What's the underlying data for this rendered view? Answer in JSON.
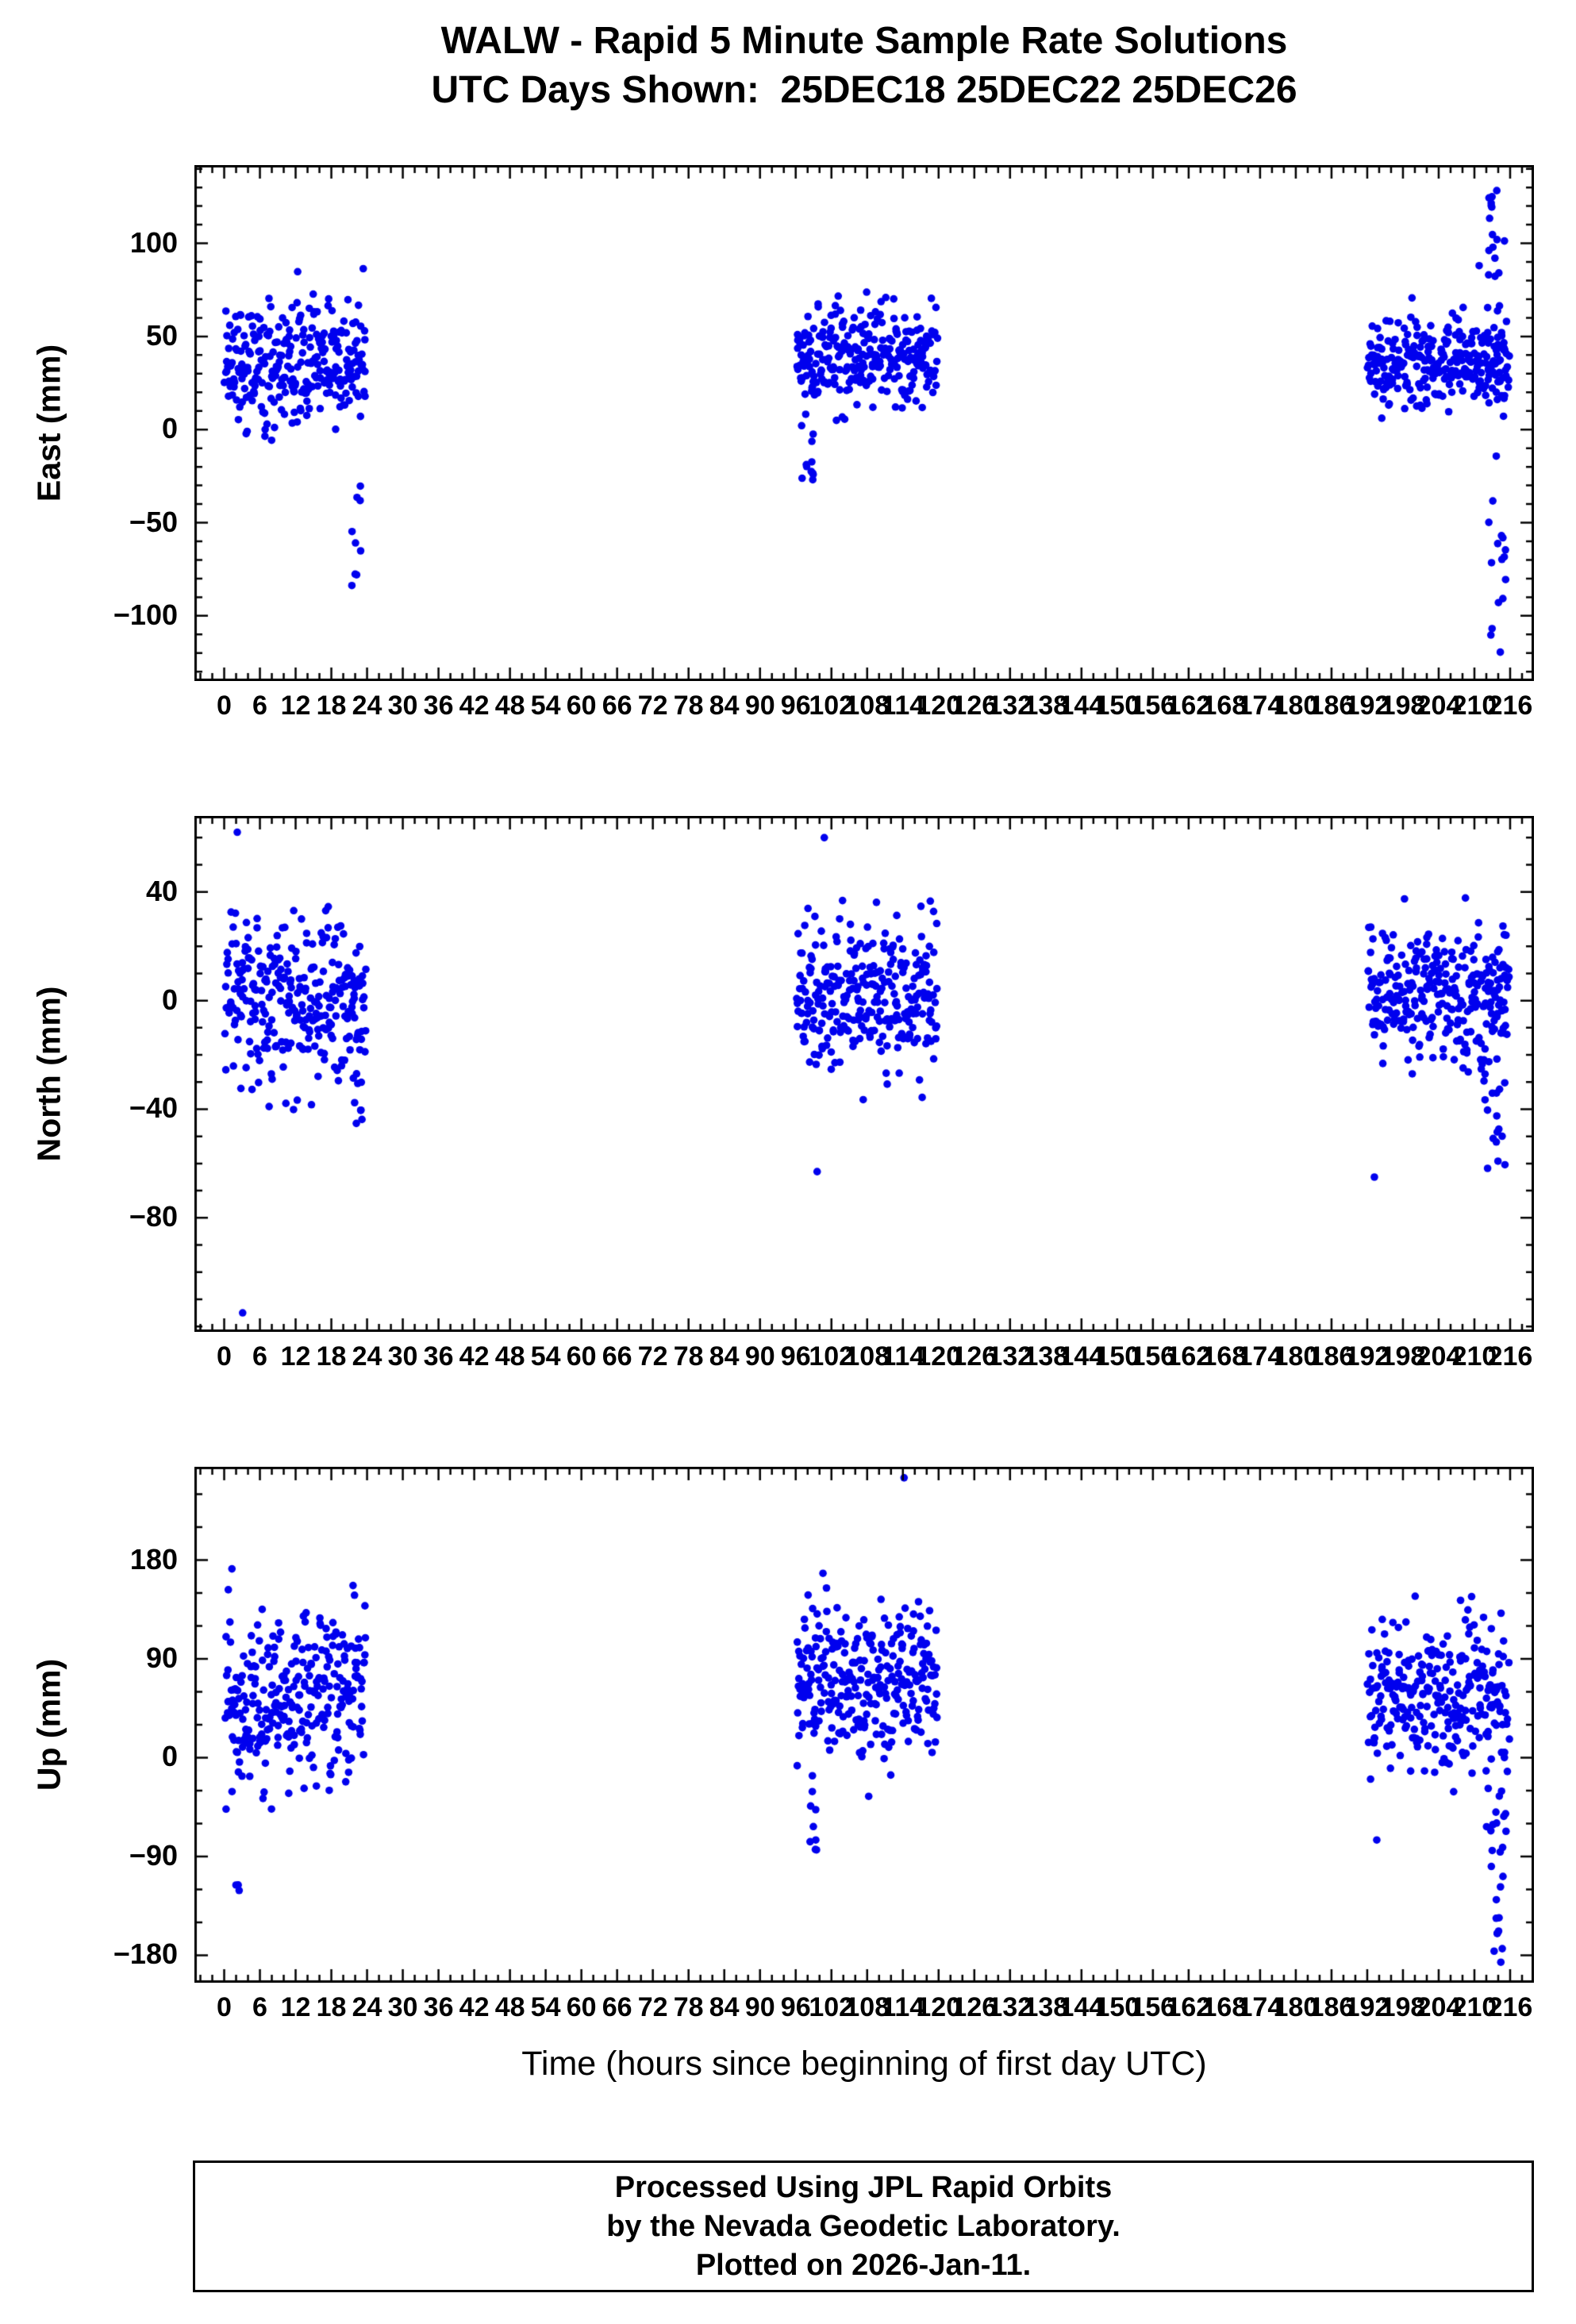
{
  "title": {
    "line1": "WALW - Rapid 5 Minute Sample Rate Solutions",
    "line2": "UTC Days Shown:  25DEC18 25DEC22 25DEC26"
  },
  "x_axis_title": "Time (hours since beginning of first day UTC)",
  "footer": {
    "lines": [
      "Processed Using JPL Rapid Orbits",
      "by the Nevada Geodetic Laboratory.",
      "Plotted on 2026-Jan-11."
    ]
  },
  "colors": {
    "points": "#0000ee",
    "axis": "#000000",
    "background": "#ffffff",
    "text": "#000000"
  },
  "chart_data": [
    {
      "type": "scatter",
      "name": "east",
      "ylabel": "East (mm)",
      "days": [
        "25DEC18",
        "25DEC22",
        "25DEC26"
      ],
      "xlim": [
        -5,
        220
      ],
      "ylim": [
        -135,
        142
      ],
      "xticks": [
        0,
        6,
        12,
        18,
        24,
        30,
        36,
        42,
        48,
        54,
        60,
        66,
        72,
        78,
        84,
        90,
        96,
        102,
        108,
        114,
        120,
        126,
        132,
        138,
        144,
        150,
        156,
        162,
        168,
        174,
        180,
        186,
        192,
        198,
        204,
        210,
        216
      ],
      "xminor": 2,
      "yticks": [
        {
          "v": 100,
          "label": "100"
        },
        {
          "v": 50,
          "label": "50"
        },
        {
          "v": 0,
          "label": "0"
        },
        {
          "v": -50,
          "label": "−50"
        },
        {
          "v": -100,
          "label": "−100"
        }
      ],
      "yminor": 10,
      "clusters": [
        {
          "x0": 0.1,
          "x1": 23.8,
          "n": 285,
          "mean": 36,
          "sd": 17,
          "ymin": -12,
          "ymax": 95
        },
        {
          "x0": 96.1,
          "x1": 119.8,
          "n": 285,
          "mean": 39,
          "sd": 14,
          "ymin": -15,
          "ymax": 90
        },
        {
          "x0": 192.1,
          "x1": 215.8,
          "n": 285,
          "mean": 36,
          "sd": 12,
          "ymin": 6,
          "ymax": 80
        }
      ],
      "streaks": [
        {
          "x0": 21.4,
          "x1": 23.2,
          "n": 9,
          "y0": -96,
          "y1": -28
        },
        {
          "x0": 96.8,
          "x1": 99.2,
          "n": 12,
          "y0": -34,
          "y1": 12
        },
        {
          "x0": 212.2,
          "x1": 215.4,
          "n": 42,
          "y0": -128,
          "y1": 137
        }
      ],
      "outliers": [
        [
          210.8,
          88
        ]
      ]
    },
    {
      "type": "scatter",
      "name": "north",
      "ylabel": "North (mm)",
      "days": [
        "25DEC18",
        "25DEC22",
        "25DEC26"
      ],
      "xlim": [
        -5,
        220
      ],
      "ylim": [
        -122,
        68
      ],
      "xticks": [
        0,
        6,
        12,
        18,
        24,
        30,
        36,
        42,
        48,
        54,
        60,
        66,
        72,
        78,
        84,
        90,
        96,
        102,
        108,
        114,
        120,
        126,
        132,
        138,
        144,
        150,
        156,
        162,
        168,
        174,
        180,
        186,
        192,
        198,
        204,
        210,
        216
      ],
      "xminor": 2,
      "yticks": [
        {
          "v": 40,
          "label": "40"
        },
        {
          "v": 0,
          "label": "0"
        },
        {
          "v": -40,
          "label": "−40"
        },
        {
          "v": -80,
          "label": "−80"
        }
      ],
      "yminor": 10,
      "clusters": [
        {
          "x0": 0.1,
          "x1": 23.8,
          "n": 285,
          "mean": 0,
          "sd": 15,
          "ymin": -46,
          "ymax": 44
        },
        {
          "x0": 96.1,
          "x1": 119.8,
          "n": 285,
          "mean": 2,
          "sd": 14,
          "ymin": -37,
          "ymax": 40
        },
        {
          "x0": 192.1,
          "x1": 215.8,
          "n": 285,
          "mean": 2,
          "sd": 13,
          "ymin": -34,
          "ymax": 46
        }
      ],
      "streaks": [
        {
          "x0": 21.5,
          "x1": 23.2,
          "n": 7,
          "y0": -52,
          "y1": -22
        },
        {
          "x0": 211.5,
          "x1": 215.5,
          "n": 28,
          "y0": -62,
          "y1": 6
        }
      ],
      "outliers": [
        [
          2.2,
          62
        ],
        [
          3.1,
          -115
        ],
        [
          100.8,
          60
        ],
        [
          99.6,
          -63
        ],
        [
          193.2,
          -65
        ]
      ]
    },
    {
      "type": "scatter",
      "name": "up",
      "ylabel": "Up (mm)",
      "days": [
        "25DEC18",
        "25DEC22",
        "25DEC26"
      ],
      "xlim": [
        -5,
        220
      ],
      "ylim": [
        -205,
        265
      ],
      "xticks": [
        0,
        6,
        12,
        18,
        24,
        30,
        36,
        42,
        48,
        54,
        60,
        66,
        72,
        78,
        84,
        90,
        96,
        102,
        108,
        114,
        120,
        126,
        132,
        138,
        144,
        150,
        156,
        162,
        168,
        174,
        180,
        186,
        192,
        198,
        204,
        210,
        216
      ],
      "xminor": 2,
      "yticks": [
        {
          "v": 180,
          "label": "180"
        },
        {
          "v": 90,
          "label": "90"
        },
        {
          "v": 0,
          "label": "0"
        },
        {
          "v": -90,
          "label": "−90"
        },
        {
          "v": -180,
          "label": "−180"
        }
      ],
      "yminor": 30,
      "clusters": [
        {
          "x0": 0.1,
          "x1": 23.8,
          "n": 285,
          "mean": 58,
          "sd": 42,
          "ymin": -62,
          "ymax": 178
        },
        {
          "x0": 96.1,
          "x1": 119.8,
          "n": 285,
          "mean": 66,
          "sd": 34,
          "ymin": -55,
          "ymax": 168
        },
        {
          "x0": 192.1,
          "x1": 215.8,
          "n": 285,
          "mean": 52,
          "sd": 36,
          "ymin": -68,
          "ymax": 172
        }
      ],
      "streaks": [
        {
          "x0": 1.9,
          "x1": 3.1,
          "n": 3,
          "y0": -125,
          "y1": -110
        },
        {
          "x0": 98.4,
          "x1": 100.2,
          "n": 9,
          "y0": -88,
          "y1": -15
        },
        {
          "x0": 212.0,
          "x1": 215.4,
          "n": 26,
          "y0": -188,
          "y1": -25
        }
      ],
      "outliers": [
        [
          114.2,
          255
        ],
        [
          1.3,
          172
        ],
        [
          193.6,
          -75
        ]
      ]
    }
  ]
}
